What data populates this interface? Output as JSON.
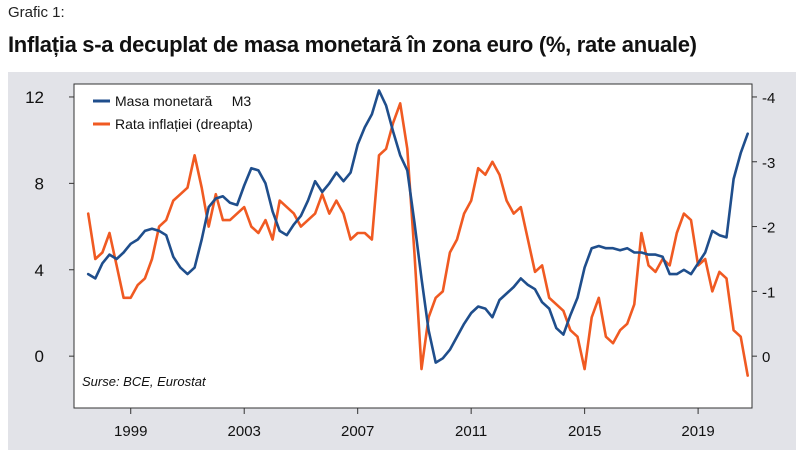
{
  "kicker": "Grafic 1:",
  "title": "Inflația s-a decuplat de masa monetară în zona euro (%, rate anuale)",
  "chart_data": {
    "type": "line",
    "title": "Inflația s-a decuplat de masa monetară în zona euro (%, rate anuale)",
    "x_range": [
      1997,
      2020.9
    ],
    "x_ticks": [
      "1999",
      "2003",
      "2007",
      "2011",
      "2015",
      "2019"
    ],
    "x_tick_values": [
      1999,
      2003,
      2007,
      2011,
      2015,
      2019
    ],
    "y_left": {
      "range": [
        -2.4,
        12.6
      ],
      "ticks": [
        "0",
        "4",
        "8",
        "12"
      ],
      "tick_values": [
        0,
        4,
        8,
        12
      ]
    },
    "y_right": {
      "inverted": true,
      "range": [
        0.8,
        -4.2
      ],
      "ticks": [
        "0",
        "-1",
        "-2",
        "-3",
        "-4"
      ],
      "tick_values": [
        0,
        -1,
        -2,
        -3,
        -4
      ]
    },
    "grid": false,
    "legend_position": "top-left",
    "note": "Surse: BCE, Eurostat",
    "colors": {
      "m3": "#1f4e8c",
      "inflation": "#f05a22",
      "panel": "#e2e3e8"
    },
    "series": [
      {
        "name": "Masa monetară     M3",
        "axis": "left",
        "x": [
          1997.5,
          1997.75,
          1998.0,
          1998.25,
          1998.5,
          1998.75,
          1999.0,
          1999.25,
          1999.5,
          1999.75,
          2000.0,
          2000.25,
          2000.5,
          2000.75,
          2001.0,
          2001.25,
          2001.5,
          2001.75,
          2002.0,
          2002.25,
          2002.5,
          2002.75,
          2003.0,
          2003.25,
          2003.5,
          2003.75,
          2004.0,
          2004.25,
          2004.5,
          2004.75,
          2005.0,
          2005.25,
          2005.5,
          2005.75,
          2006.0,
          2006.25,
          2006.5,
          2006.75,
          2007.0,
          2007.25,
          2007.5,
          2007.75,
          2008.0,
          2008.25,
          2008.5,
          2008.75,
          2009.0,
          2009.25,
          2009.5,
          2009.75,
          2010.0,
          2010.25,
          2010.5,
          2010.75,
          2011.0,
          2011.25,
          2011.5,
          2011.75,
          2012.0,
          2012.25,
          2012.5,
          2012.75,
          2013.0,
          2013.25,
          2013.5,
          2013.75,
          2014.0,
          2014.25,
          2014.5,
          2014.75,
          2015.0,
          2015.25,
          2015.5,
          2015.75,
          2016.0,
          2016.25,
          2016.5,
          2016.75,
          2017.0,
          2017.25,
          2017.5,
          2017.75,
          2018.0,
          2018.25,
          2018.5,
          2018.75,
          2019.0,
          2019.25,
          2019.5,
          2019.75,
          2020.0,
          2020.25,
          2020.5,
          2020.75
        ],
        "values": [
          3.8,
          3.6,
          4.3,
          4.7,
          4.5,
          4.8,
          5.2,
          5.4,
          5.8,
          5.9,
          5.8,
          5.6,
          4.6,
          4.1,
          3.8,
          4.1,
          5.4,
          6.9,
          7.3,
          7.4,
          7.1,
          7.0,
          7.9,
          8.7,
          8.6,
          8.0,
          6.7,
          5.8,
          5.6,
          6.1,
          6.5,
          7.2,
          8.1,
          7.6,
          8.0,
          8.5,
          8.1,
          8.5,
          9.8,
          10.6,
          11.2,
          12.3,
          11.6,
          10.4,
          9.3,
          8.6,
          6.2,
          3.6,
          1.2,
          -0.3,
          -0.1,
          0.3,
          0.9,
          1.5,
          2.0,
          2.3,
          2.2,
          1.8,
          2.6,
          2.9,
          3.2,
          3.6,
          3.3,
          3.1,
          2.5,
          2.2,
          1.3,
          1.0,
          1.9,
          2.7,
          4.1,
          5.0,
          5.1,
          5.0,
          5.0,
          4.9,
          5.0,
          4.8,
          4.8,
          4.7,
          4.7,
          4.6,
          3.8,
          3.8,
          4.0,
          3.8,
          4.3,
          4.8,
          5.8,
          5.6,
          5.5,
          8.2,
          9.4,
          10.3
        ]
      },
      {
        "name": "Rata inflației (dreapta)",
        "axis": "right",
        "x": [
          1997.5,
          1997.75,
          1998.0,
          1998.25,
          1998.5,
          1998.75,
          1999.0,
          1999.25,
          1999.5,
          1999.75,
          2000.0,
          2000.25,
          2000.5,
          2000.75,
          2001.0,
          2001.25,
          2001.5,
          2001.75,
          2002.0,
          2002.25,
          2002.5,
          2002.75,
          2003.0,
          2003.25,
          2003.5,
          2003.75,
          2004.0,
          2004.25,
          2004.5,
          2004.75,
          2005.0,
          2005.25,
          2005.5,
          2005.75,
          2006.0,
          2006.25,
          2006.5,
          2006.75,
          2007.0,
          2007.25,
          2007.5,
          2007.75,
          2008.0,
          2008.25,
          2008.5,
          2008.75,
          2009.0,
          2009.25,
          2009.5,
          2009.75,
          2010.0,
          2010.25,
          2010.5,
          2010.75,
          2011.0,
          2011.25,
          2011.5,
          2011.75,
          2012.0,
          2012.25,
          2012.5,
          2012.75,
          2013.0,
          2013.25,
          2013.5,
          2013.75,
          2014.0,
          2014.25,
          2014.5,
          2014.75,
          2015.0,
          2015.25,
          2015.5,
          2015.75,
          2016.0,
          2016.25,
          2016.5,
          2016.75,
          2017.0,
          2017.25,
          2017.5,
          2017.75,
          2018.0,
          2018.25,
          2018.5,
          2018.75,
          2019.0,
          2019.25,
          2019.5,
          2019.75,
          2020.0,
          2020.25,
          2020.5,
          2020.75
        ],
        "values": [
          -2.2,
          -1.5,
          -1.6,
          -1.9,
          -1.4,
          -0.9,
          -0.9,
          -1.1,
          -1.2,
          -1.5,
          -2.0,
          -2.1,
          -2.4,
          -2.5,
          -2.6,
          -3.1,
          -2.6,
          -2.0,
          -2.5,
          -2.1,
          -2.1,
          -2.2,
          -2.3,
          -2.0,
          -1.9,
          -2.1,
          -1.8,
          -2.4,
          -2.3,
          -2.2,
          -2.0,
          -2.1,
          -2.2,
          -2.5,
          -2.2,
          -2.4,
          -2.2,
          -1.8,
          -1.9,
          -1.9,
          -1.8,
          -3.1,
          -3.2,
          -3.6,
          -3.9,
          -3.2,
          -1.6,
          0.2,
          -0.6,
          -0.9,
          -1.0,
          -1.6,
          -1.8,
          -2.2,
          -2.4,
          -2.9,
          -2.8,
          -3.0,
          -2.8,
          -2.4,
          -2.2,
          -2.3,
          -1.8,
          -1.3,
          -1.4,
          -0.9,
          -0.8,
          -0.7,
          -0.4,
          -0.3,
          0.2,
          -0.6,
          -0.9,
          -0.3,
          -0.2,
          -0.4,
          -0.5,
          -0.8,
          -1.9,
          -1.4,
          -1.3,
          -1.5,
          -1.4,
          -1.9,
          -2.2,
          -2.1,
          -1.4,
          -1.5,
          -1.0,
          -1.3,
          -1.2,
          -0.4,
          -0.3,
          0.3
        ]
      }
    ]
  }
}
